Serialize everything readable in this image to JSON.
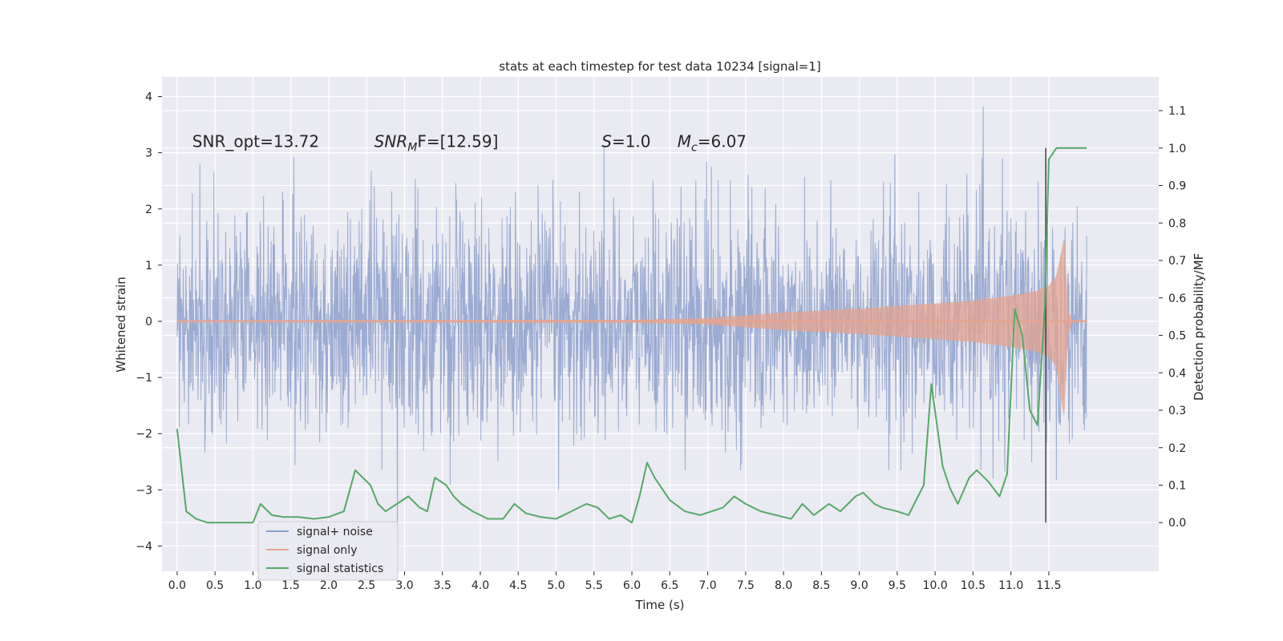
{
  "chart_data": {
    "type": "line",
    "title": "stats at each timestep for test data 10234 [signal=1]",
    "xlabel": "Time (s)",
    "ylabel": "Whitened strain",
    "y2label": "Detection probability/MF",
    "xlim": [
      -0.2,
      12.95
    ],
    "ylim": [
      -4.45,
      4.35
    ],
    "y2lim": [
      -0.13,
      1.19
    ],
    "x_ticks": [
      0.0,
      0.5,
      1.0,
      1.5,
      2.0,
      2.5,
      3.0,
      3.5,
      4.0,
      4.5,
      5.0,
      5.5,
      6.0,
      6.5,
      7.0,
      7.5,
      8.0,
      8.5,
      9.0,
      9.5,
      10.0,
      10.5,
      11.0,
      11.5
    ],
    "x_tick_labels": [
      "0.0",
      "0.5",
      "1.0",
      "1.5",
      "2.0",
      "2.5",
      "3.0",
      "3.5",
      "4.0",
      "4.5",
      "5.0",
      "5.5",
      "6.0",
      "6.5",
      "7.0",
      "7.5",
      "8.0",
      "8.5",
      "9.0",
      "9.5",
      "10.0",
      "10.5",
      "11.0",
      "11.5"
    ],
    "y_ticks": [
      -4,
      -3,
      -2,
      -1,
      0,
      1,
      2,
      3,
      4
    ],
    "y_tick_labels": [
      "−4",
      "−3",
      "−2",
      "−1",
      "0",
      "1",
      "2",
      "3",
      "4"
    ],
    "y2_ticks": [
      0.0,
      0.1,
      0.2,
      0.3,
      0.4,
      0.5,
      0.6,
      0.7,
      0.8,
      0.9,
      1.0,
      1.1
    ],
    "y2_tick_labels": [
      "0.0",
      "0.1",
      "0.2",
      "0.3",
      "0.4",
      "0.5",
      "0.6",
      "0.7",
      "0.8",
      "0.9",
      "1.0",
      "1.1"
    ],
    "grid": true,
    "legend_position": "lower-left",
    "series": [
      {
        "name": "signal+ noise",
        "color": "#8da0cb",
        "axis": "left",
        "style": "noise",
        "duration": 12.0,
        "std": 1.0,
        "peak_max": 3.97,
        "peak_min": -4.05
      },
      {
        "name": "signal only",
        "color": "#e5a48f",
        "axis": "left",
        "style": "chirp",
        "envelope": {
          "x": [
            0.0,
            6.0,
            7.0,
            8.0,
            9.0,
            10.0,
            10.5,
            11.0,
            11.3,
            11.5,
            11.6,
            11.65,
            11.7,
            11.75,
            11.8,
            12.0
          ],
          "amp": [
            0.01,
            0.02,
            0.05,
            0.15,
            0.22,
            0.31,
            0.36,
            0.45,
            0.52,
            0.62,
            0.8,
            1.1,
            1.45,
            0.2,
            0.02,
            0.01
          ]
        }
      },
      {
        "name": "signal statistics",
        "color": "#55a868",
        "axis": "right",
        "style": "line",
        "x": [
          0.0,
          0.12,
          0.25,
          0.4,
          0.6,
          0.8,
          1.0,
          1.1,
          1.25,
          1.4,
          1.6,
          1.8,
          2.0,
          2.2,
          2.35,
          2.55,
          2.65,
          2.75,
          2.9,
          3.05,
          3.2,
          3.3,
          3.4,
          3.55,
          3.65,
          3.75,
          3.9,
          4.1,
          4.3,
          4.45,
          4.6,
          4.8,
          5.0,
          5.2,
          5.4,
          5.55,
          5.7,
          5.85,
          6.0,
          6.1,
          6.2,
          6.3,
          6.5,
          6.7,
          6.9,
          7.05,
          7.2,
          7.35,
          7.5,
          7.7,
          7.9,
          8.1,
          8.25,
          8.4,
          8.6,
          8.75,
          8.95,
          9.05,
          9.2,
          9.3,
          9.5,
          9.65,
          9.85,
          9.95,
          10.1,
          10.2,
          10.3,
          10.45,
          10.55,
          10.7,
          10.85,
          10.95,
          11.05,
          11.15,
          11.25,
          11.35,
          11.45,
          11.5,
          11.6,
          11.8,
          12.0
        ],
        "y": [
          0.25,
          0.03,
          0.01,
          0.0,
          0.0,
          0.0,
          0.0,
          0.05,
          0.02,
          0.015,
          0.015,
          0.01,
          0.015,
          0.03,
          0.14,
          0.1,
          0.05,
          0.03,
          0.05,
          0.07,
          0.04,
          0.03,
          0.12,
          0.1,
          0.07,
          0.05,
          0.03,
          0.01,
          0.01,
          0.05,
          0.025,
          0.015,
          0.01,
          0.03,
          0.05,
          0.04,
          0.01,
          0.02,
          0.0,
          0.07,
          0.16,
          0.12,
          0.06,
          0.03,
          0.02,
          0.03,
          0.04,
          0.07,
          0.05,
          0.03,
          0.02,
          0.01,
          0.05,
          0.02,
          0.05,
          0.03,
          0.07,
          0.08,
          0.05,
          0.04,
          0.03,
          0.02,
          0.1,
          0.37,
          0.15,
          0.09,
          0.05,
          0.12,
          0.14,
          0.11,
          0.07,
          0.13,
          0.57,
          0.5,
          0.3,
          0.26,
          0.58,
          0.97,
          1.0,
          1.0,
          1.0
        ]
      },
      {
        "name": "",
        "color": "#404040",
        "axis": "right",
        "style": "vline",
        "x": 11.46,
        "y": [
          0.0,
          1.0
        ]
      }
    ],
    "annotations": [
      {
        "kind": "plain",
        "text": "SNR_opt=13.72",
        "x": 0.2,
        "y": 3.1
      },
      {
        "kind": "sub",
        "base": "SNR",
        "sub": "M",
        "rest": "F=[12.59]",
        "x": 2.6,
        "y": 3.1
      },
      {
        "kind": "italic",
        "base": "S",
        "rest": "=1.0",
        "x": 5.6,
        "y": 3.1
      },
      {
        "kind": "sub",
        "base": "M",
        "sub": "c",
        "rest": "=6.07",
        "x": 6.6,
        "y": 3.1
      }
    ]
  }
}
